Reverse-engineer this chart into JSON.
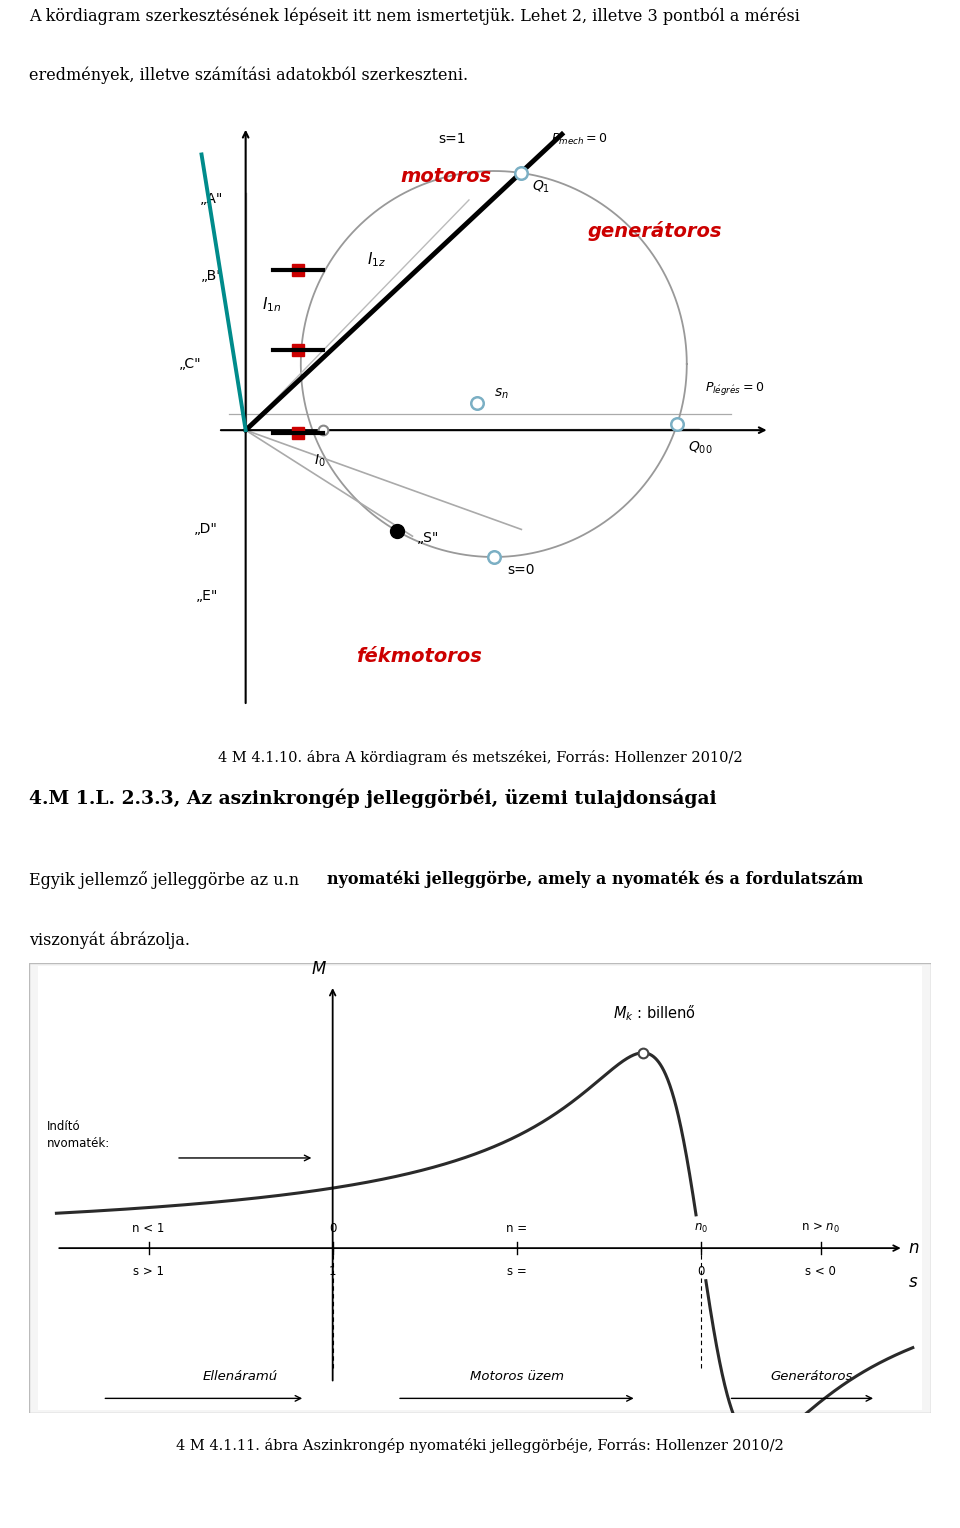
{
  "page_width": 9.6,
  "page_height": 15.28,
  "bg_color": "#ffffff",
  "text1": "A kördiagram szerkesztésének lépéseit itt nem ismertetjük. Lehet 2, illetve 3 pontból a mérési",
  "text2": "eredmények, illetve számítási adatokból szerkeszteni.",
  "caption1": "4 M 4.1.10. ábra A kördiagram és metszékei, Forrás: Hollenzer 2010/2",
  "section_title": "4.M 1.L. 2.3.3, Az aszinkrongép jelleggörbéi, üzemi tulajdonságai",
  "body_text_normal": "Egyik jellemző jelleggörbe az u.n ",
  "body_text_bold": "nyomatéki jelleggörbe, amely a nyomaték és a fordulatszám",
  "body_text_normal2": "viszonyát ábrázolja.",
  "caption2": "4 M 4.1.11. ábra Aszinkrongép nyomatéki jelleggörbéje, Forrás: Hollenzer 2010/2",
  "red_color": "#cc0000",
  "teal_color": "#008B8B",
  "gray_color": "#888888",
  "light_blue_marker": "#7BAFC4"
}
